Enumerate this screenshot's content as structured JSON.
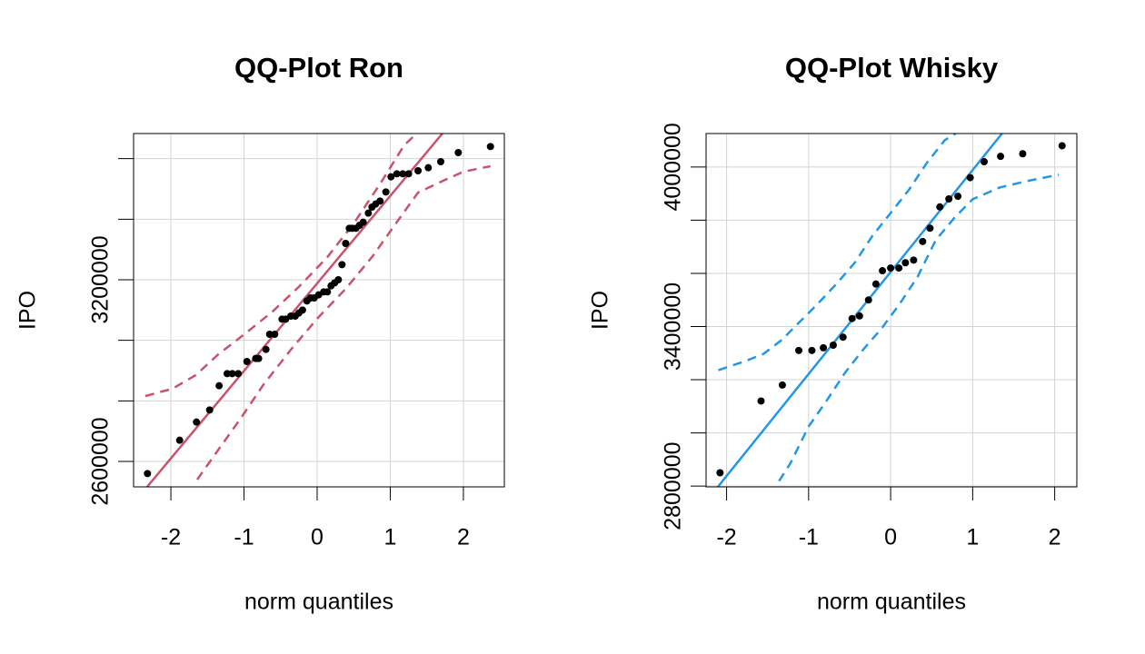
{
  "chart_data": [
    {
      "type": "qq",
      "title": "QQ-Plot Ron",
      "xlabel": "norm quantiles",
      "ylabel": "IPO",
      "xlim": [
        -2.51,
        2.56
      ],
      "ylim": [
        2516000,
        3683000
      ],
      "xticks": [
        -2,
        -1,
        0,
        1,
        2
      ],
      "yticks": [
        2600000,
        {
          "value": 2800000,
          "label": null
        },
        {
          "value": 3000000,
          "label": null
        },
        3200000,
        {
          "value": 3400000,
          "label": null
        },
        {
          "value": 3600000,
          "label": null
        }
      ],
      "grid": true,
      "points": {
        "color": "#000000",
        "x": [
          -2.32,
          -1.88,
          -1.65,
          -1.47,
          -1.34,
          -1.23,
          -1.16,
          -1.08,
          -0.96,
          -0.84,
          -0.8,
          -0.7,
          -0.65,
          -0.58,
          -0.48,
          -0.43,
          -0.36,
          -0.3,
          -0.25,
          -0.2,
          -0.14,
          -0.09,
          -0.04,
          0.02,
          0.09,
          0.14,
          0.19,
          0.24,
          0.29,
          0.34,
          0.39,
          0.44,
          0.48,
          0.53,
          0.58,
          0.63,
          0.7,
          0.75,
          0.8,
          0.86,
          0.94,
          1.01,
          1.09,
          1.17,
          1.25,
          1.38,
          1.52,
          1.69,
          1.93,
          2.37
        ],
        "values": [
          2560000,
          2670000,
          2730000,
          2770000,
          2850000,
          2890000,
          2890000,
          2890000,
          2930000,
          2940000,
          2940000,
          2970000,
          3020000,
          3020000,
          3070000,
          3070000,
          3080000,
          3080000,
          3090000,
          3100000,
          3130000,
          3140000,
          3140000,
          3150000,
          3160000,
          3160000,
          3180000,
          3190000,
          3200000,
          3250000,
          3320000,
          3370000,
          3370000,
          3370000,
          3380000,
          3390000,
          3420000,
          3440000,
          3450000,
          3460000,
          3490000,
          3540000,
          3550000,
          3550000,
          3550000,
          3560000,
          3570000,
          3590000,
          3620000,
          3640000
        ]
      },
      "line": {
        "color": "#c9536b",
        "x": [
          -2.5,
          2.5
        ],
        "values": [
          2465500,
          3910500
        ]
      },
      "band_upper": {
        "color": "#c9536b",
        "x": [
          -2.35,
          -1.98,
          -1.66,
          -1.35,
          -0.98,
          -0.61,
          -0.24,
          0.14,
          0.51,
          0.88,
          1.19,
          1.32
        ],
        "values": [
          2816000,
          2840000,
          2885000,
          2954000,
          3023000,
          3095000,
          3179000,
          3275000,
          3389000,
          3524000,
          3644000,
          3674000
        ]
      },
      "band_lower": {
        "color": "#c9536b",
        "x": [
          -1.64,
          -1.35,
          -1.04,
          -0.73,
          -0.36,
          0.01,
          0.39,
          0.76,
          1.13,
          1.38,
          1.75,
          2.0,
          2.37
        ],
        "values": [
          2540000,
          2639000,
          2744000,
          2855000,
          2969000,
          3074000,
          3170000,
          3278000,
          3404000,
          3488000,
          3530000,
          3557000,
          3575000
        ]
      }
    },
    {
      "type": "qq",
      "title": "QQ-Plot Whisky",
      "xlabel": "norm quantiles",
      "ylabel": "IPO",
      "xlim": [
        -2.25,
        2.27
      ],
      "ylim": [
        2797000,
        4126000
      ],
      "xticks": [
        -2,
        -1,
        0,
        1,
        2
      ],
      "yticks": [
        2800000,
        {
          "value": 3000000,
          "label": null
        },
        {
          "value": 3200000,
          "label": null
        },
        3400000,
        {
          "value": 3600000,
          "label": null
        },
        {
          "value": 3800000,
          "label": null
        },
        4000000
      ],
      "grid": true,
      "points": {
        "color": "#000000",
        "x": [
          -2.08,
          -1.58,
          -1.32,
          -1.12,
          -0.96,
          -0.82,
          -0.7,
          -0.58,
          -0.47,
          -0.38,
          -0.27,
          -0.18,
          -0.1,
          0,
          0.1,
          0.18,
          0.28,
          0.39,
          0.48,
          0.6,
          0.71,
          0.82,
          0.97,
          1.14,
          1.34,
          1.61,
          2.09
        ],
        "values": [
          2850000,
          3120000,
          3180000,
          3310000,
          3310000,
          3320000,
          3330000,
          3360000,
          3430000,
          3440000,
          3500000,
          3560000,
          3610000,
          3620000,
          3620000,
          3640000,
          3650000,
          3720000,
          3770000,
          3850000,
          3880000,
          3890000,
          3960000,
          4020000,
          4040000,
          4050000,
          4080000
        ]
      },
      "line": {
        "color": "#2297e6",
        "x": [
          -2.25,
          2.27
        ],
        "values": [
          2742000,
          4476000
        ]
      },
      "band_upper": {
        "color": "#2297e6",
        "x": [
          -2.1,
          -1.77,
          -1.55,
          -1.33,
          -1.11,
          -0.89,
          -0.66,
          -0.44,
          -0.22,
          0,
          0.22,
          0.44,
          0.66,
          0.8
        ],
        "values": [
          3236000,
          3270000,
          3297000,
          3349000,
          3417000,
          3485000,
          3561000,
          3639000,
          3742000,
          3827000,
          3913000,
          4015000,
          4101000,
          4128000
        ]
      },
      "band_lower": {
        "color": "#2297e6",
        "x": [
          -1.36,
          -1.22,
          -1.0,
          -0.77,
          -0.55,
          -0.33,
          -0.11,
          0.11,
          0.33,
          0.55,
          0.78,
          1.0,
          1.33,
          1.66,
          2.05
        ],
        "values": [
          2819000,
          2887000,
          3024000,
          3126000,
          3229000,
          3315000,
          3393000,
          3485000,
          3588000,
          3725000,
          3810000,
          3879000,
          3923000,
          3947000,
          3971000
        ]
      }
    }
  ]
}
